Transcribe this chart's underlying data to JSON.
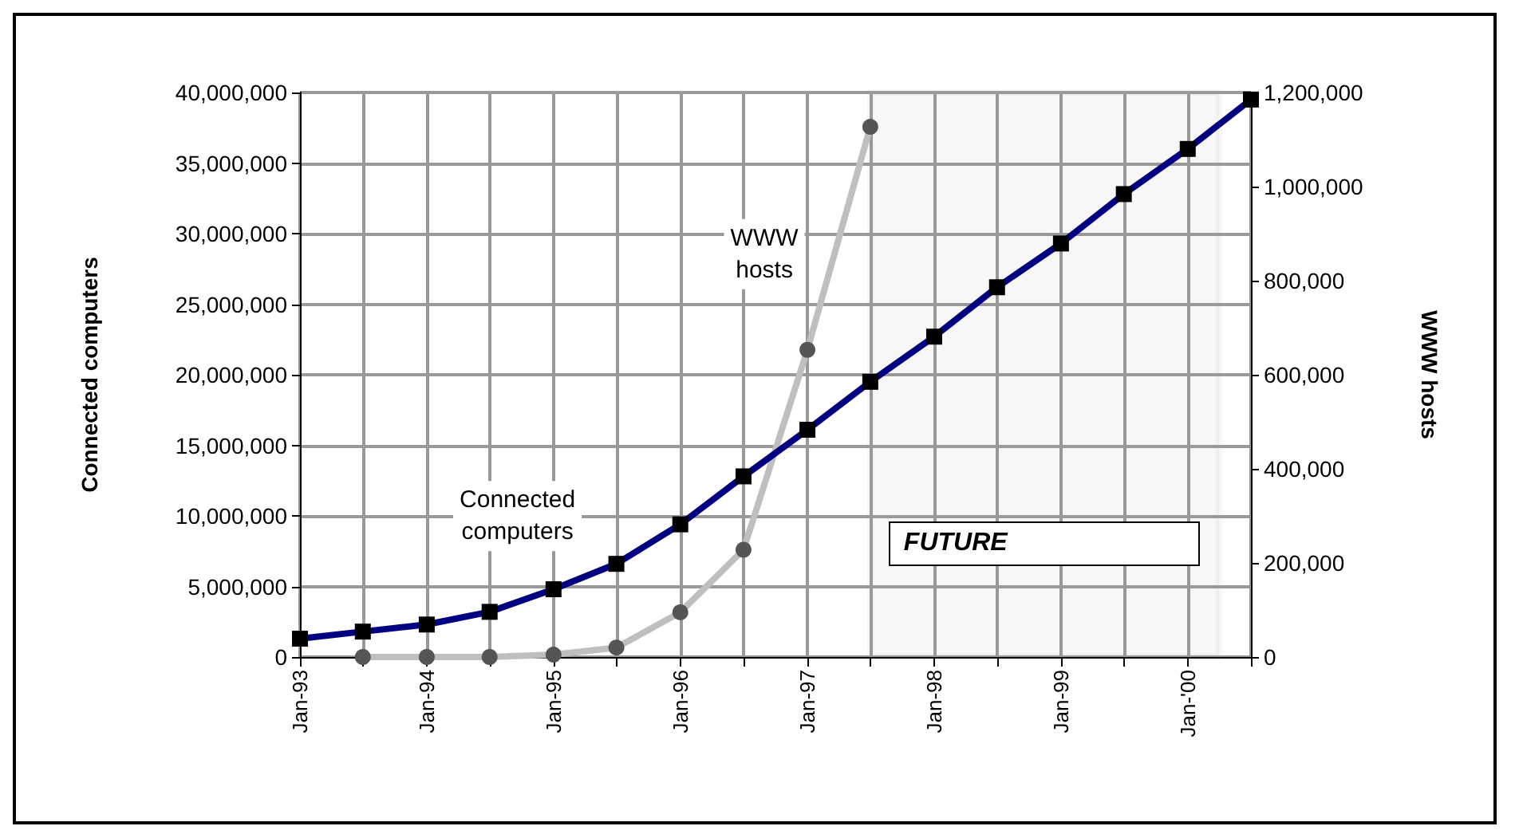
{
  "chart_data": {
    "type": "line",
    "ylabel": "Connected computers",
    "y2label": "WWW hosts",
    "x": [
      "1993-01",
      "1993-07",
      "1994-01",
      "1994-07",
      "1995-01",
      "1995-07",
      "1996-01",
      "1996-07",
      "1997-01",
      "1997-07",
      "1998-01",
      "1998-07",
      "1999-01",
      "1999-07",
      "2000-01",
      "2000-07"
    ],
    "series": [
      {
        "name": "Connected computers",
        "color": "#000080",
        "marker": "square",
        "values": [
          1300000,
          1800000,
          2300000,
          3200000,
          4800000,
          6600000,
          9400000,
          12800000,
          16100000,
          19500000,
          22700000,
          26200000,
          29300000,
          32800000,
          36000000,
          39500000
        ]
      },
      {
        "name": "WWW hosts",
        "color": "#bfbfbf",
        "marker": "circle",
        "axis": "y2",
        "values": [
          null,
          0,
          0,
          0,
          5000,
          20000,
          95000,
          228000,
          653000,
          1127000,
          null,
          null,
          null,
          null,
          null,
          null
        ]
      }
    ],
    "xlim": [
      "1993-01",
      "2000-07"
    ],
    "xticks": [
      {
        "value": "1993-01",
        "label": "Jan-93"
      },
      {
        "value": "1993-07",
        "label": null
      },
      {
        "value": "1994-01",
        "label": "Jan-94"
      },
      {
        "value": "1994-07",
        "label": null
      },
      {
        "value": "1995-01",
        "label": "Jan-95"
      },
      {
        "value": "1995-07",
        "label": null
      },
      {
        "value": "1996-01",
        "label": "Jan-96"
      },
      {
        "value": "1996-07",
        "label": null
      },
      {
        "value": "1997-01",
        "label": "Jan-97"
      },
      {
        "value": "1997-07",
        "label": null
      },
      {
        "value": "1998-01",
        "label": "Jan-98"
      },
      {
        "value": "1998-07",
        "label": null
      },
      {
        "value": "1999-01",
        "label": "Jan-99"
      },
      {
        "value": "1999-07",
        "label": null
      },
      {
        "value": "2000-01",
        "label": "Jan-'00"
      },
      {
        "value": "2000-07",
        "label": null
      }
    ],
    "ylim": [
      0,
      40000000
    ],
    "yticks": [
      0,
      {
        "value": 5000000,
        "label": "5,000,000"
      },
      {
        "value": 10000000,
        "label": "10,000,000"
      },
      {
        "value": 15000000,
        "label": "15,000,000"
      },
      {
        "value": 20000000,
        "label": "20,000,000"
      },
      {
        "value": 25000000,
        "label": "25,000,000"
      },
      {
        "value": 30000000,
        "label": "30,000,000"
      },
      {
        "value": 35000000,
        "label": "35,000,000"
      },
      {
        "value": 40000000,
        "label": "40,000,000"
      }
    ],
    "y2lim": [
      0,
      1200000
    ],
    "y2ticks": [
      0,
      {
        "value": 200000,
        "label": "200,000"
      },
      {
        "value": 400000,
        "label": "400,000"
      },
      {
        "value": 600000,
        "label": "600,000"
      },
      {
        "value": 800000,
        "label": "800,000"
      },
      {
        "value": 1000000,
        "label": "1,000,000"
      },
      {
        "value": 1200000,
        "label": "1,200,000"
      }
    ],
    "bands": [
      {
        "axis": "x",
        "from": "1997-07",
        "to": "2000-04",
        "label": "FUTURE",
        "color": "#999999"
      }
    ],
    "grid": true,
    "legend": false,
    "line_style": "solid"
  }
}
